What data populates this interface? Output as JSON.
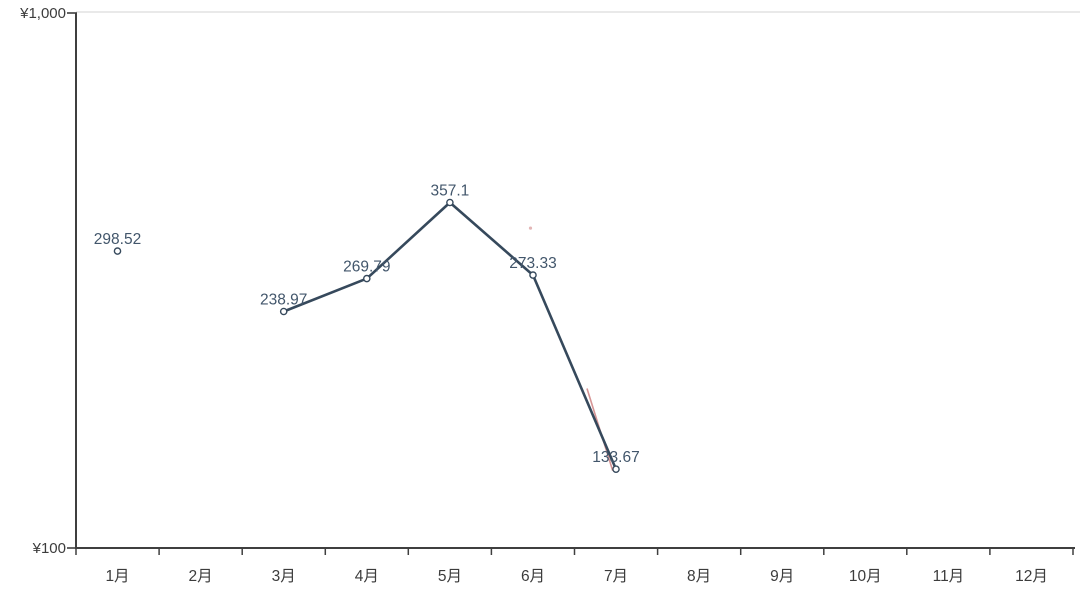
{
  "chart_data": {
    "type": "line",
    "title": "",
    "x_categories": [
      "1月",
      "2月",
      "3月",
      "4月",
      "5月",
      "6月",
      "7月",
      "8月",
      "9月",
      "10月",
      "11月",
      "12月"
    ],
    "y_axis": {
      "top_tick_label": "¥1,000",
      "bottom_tick_label": "¥100",
      "scale": "log",
      "min": 100,
      "max": 1000
    },
    "series": [
      {
        "name": "monthly-amount",
        "color": "#36495c",
        "marker": "open-circle",
        "points": [
          {
            "category": "1月",
            "value": 298.52,
            "label": "298.52",
            "connected": false
          },
          {
            "category": "3月",
            "value": 238.97,
            "label": "238.97",
            "connected": true
          },
          {
            "category": "4月",
            "value": 269.79,
            "label": "269.79",
            "connected": true
          },
          {
            "category": "5月",
            "value": 357.1,
            "label": "357.1",
            "connected": true
          },
          {
            "category": "6月",
            "value": 273.33,
            "label": "273.33",
            "connected": true
          },
          {
            "category": "7月",
            "value": 133.67,
            "label": "133.67",
            "connected": true
          }
        ]
      }
    ],
    "faint_overlay": {
      "name": "faint-red-trace",
      "color": "#cc7a7a",
      "dot": {
        "month_position": 5.97,
        "value": 325
      },
      "segment": [
        {
          "month_position": 6.65,
          "value": 180
        },
        {
          "month_position": 6.96,
          "value": 133
        }
      ]
    },
    "grid": {
      "top_gridline": true,
      "gridline_color": "#e2e2e2"
    },
    "colors": {
      "axis": "#3f3f3f",
      "tick_label": "#3c3c3c",
      "data_label": "#42566b",
      "background": "#ffffff"
    },
    "legend": null
  }
}
